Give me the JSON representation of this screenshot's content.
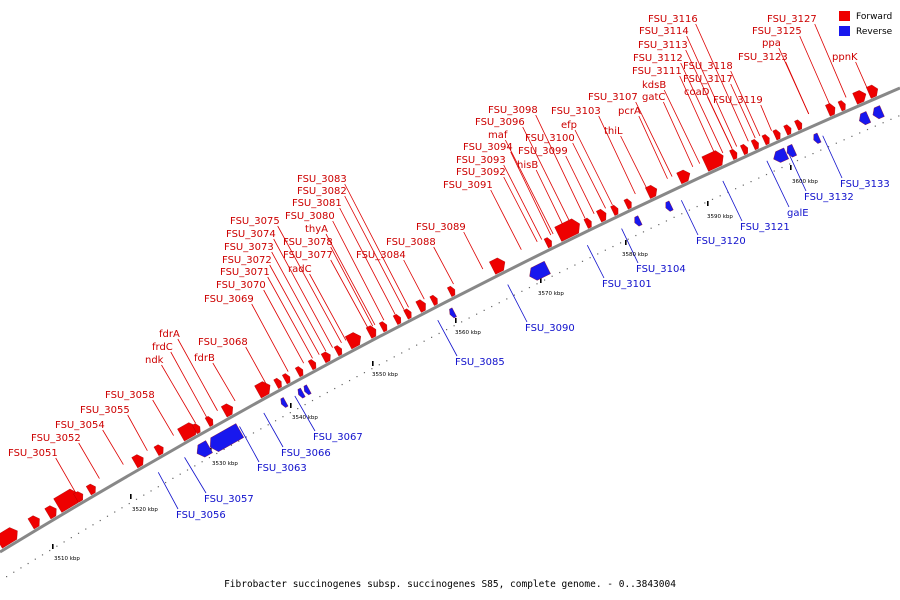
{
  "caption": "Fibrobacter succinogenes subsp. succinogenes S85, complete genome. - 0..3843004",
  "legend": [
    {
      "name": "Forward",
      "color": "#ee0000"
    },
    {
      "name": "Reverse",
      "color": "#1818ee"
    }
  ],
  "colors": {
    "forward": "#ee0000",
    "reverse": "#1818ee",
    "backbone": "#888888"
  },
  "kbp_ticks": [
    "3510 kbp",
    "3520 kbp",
    "3530 kbp",
    "3540 kbp",
    "3550 kbp",
    "3560 kbp",
    "3570 kbp",
    "3580 kbp",
    "3590 kbp",
    "3600 kbp"
  ],
  "forward_genes": [
    "FSU_3051",
    "FSU_3052",
    "FSU_3054",
    "FSU_3055",
    "FSU_3058",
    "ndk",
    "frdC",
    "fdrA",
    "fdrB",
    "FSU_3068",
    "FSU_3069",
    "FSU_3070",
    "FSU_3071",
    "FSU_3072",
    "FSU_3073",
    "FSU_3074",
    "FSU_3075",
    "FSU_3077",
    "FSU_3078",
    "radC",
    "FSU_3080",
    "thyA",
    "FSU_3081",
    "FSU_3082",
    "FSU_3083",
    "FSU_3084",
    "FSU_3088",
    "FSU_3089",
    "FSU_3091",
    "FSU_3092",
    "FSU_3093",
    "FSU_3094",
    "hisB",
    "maf",
    "FSU_3096",
    "FSU_3098",
    "FSU_3099",
    "FSU_3100",
    "efp",
    "FSU_3103",
    "thiL",
    "FSU_3107",
    "pcrA",
    "kdsB",
    "gatC",
    "FSU_3111",
    "FSU_3112",
    "FSU_3113",
    "FSU_3114",
    "FSU_3116",
    "FSU_3118",
    "coaD",
    "FSU_3117",
    "FSU_3119",
    "FSU_3123",
    "ppa",
    "FSU_3125",
    "FSU_3127",
    "ppnK"
  ],
  "reverse_genes": [
    "FSU_3056",
    "FSU_3057",
    "FSU_3063",
    "FSU_3066",
    "FSU_3067",
    "FSU_3085",
    "FSU_3090",
    "FSU_3101",
    "FSU_3104",
    "FSU_3120",
    "FSU_3121",
    "galE",
    "FSU_3132",
    "FSU_3133"
  ]
}
